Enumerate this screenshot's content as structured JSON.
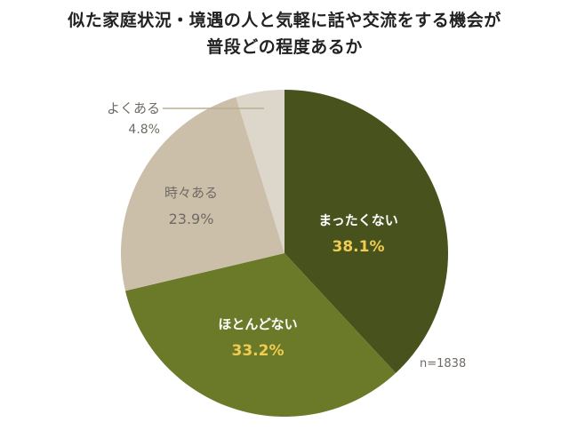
{
  "chart_data": {
    "type": "pie",
    "title": "似た家庭状況・境遇の人と気軽に話や交流をする機会が普段どの程度あるか",
    "title_lines": [
      "似た家庭状況・境遇の人と気軽に話や交流をする機会が",
      "普段どの程度あるか"
    ],
    "categories": [
      "まったくない",
      "ほとんどない",
      "時々ある",
      "よくある"
    ],
    "values": [
      38.1,
      33.2,
      23.9,
      4.8
    ],
    "value_labels": [
      "38.1%",
      "33.2%",
      "23.9%",
      "4.8%"
    ],
    "colors": [
      "#47521d",
      "#6a7a28",
      "#cbbfaa",
      "#ddd6ca"
    ],
    "start_angle": "12 o'clock",
    "direction": "clockwise",
    "annotation": "n=1838",
    "legend": "none (labels inside slices; 'よくある' labelled outside with leader line)"
  },
  "colors": {
    "label_highlight": "#f0cc50",
    "label_gray": "#6f6a64",
    "leader_line": "#bcae94"
  }
}
